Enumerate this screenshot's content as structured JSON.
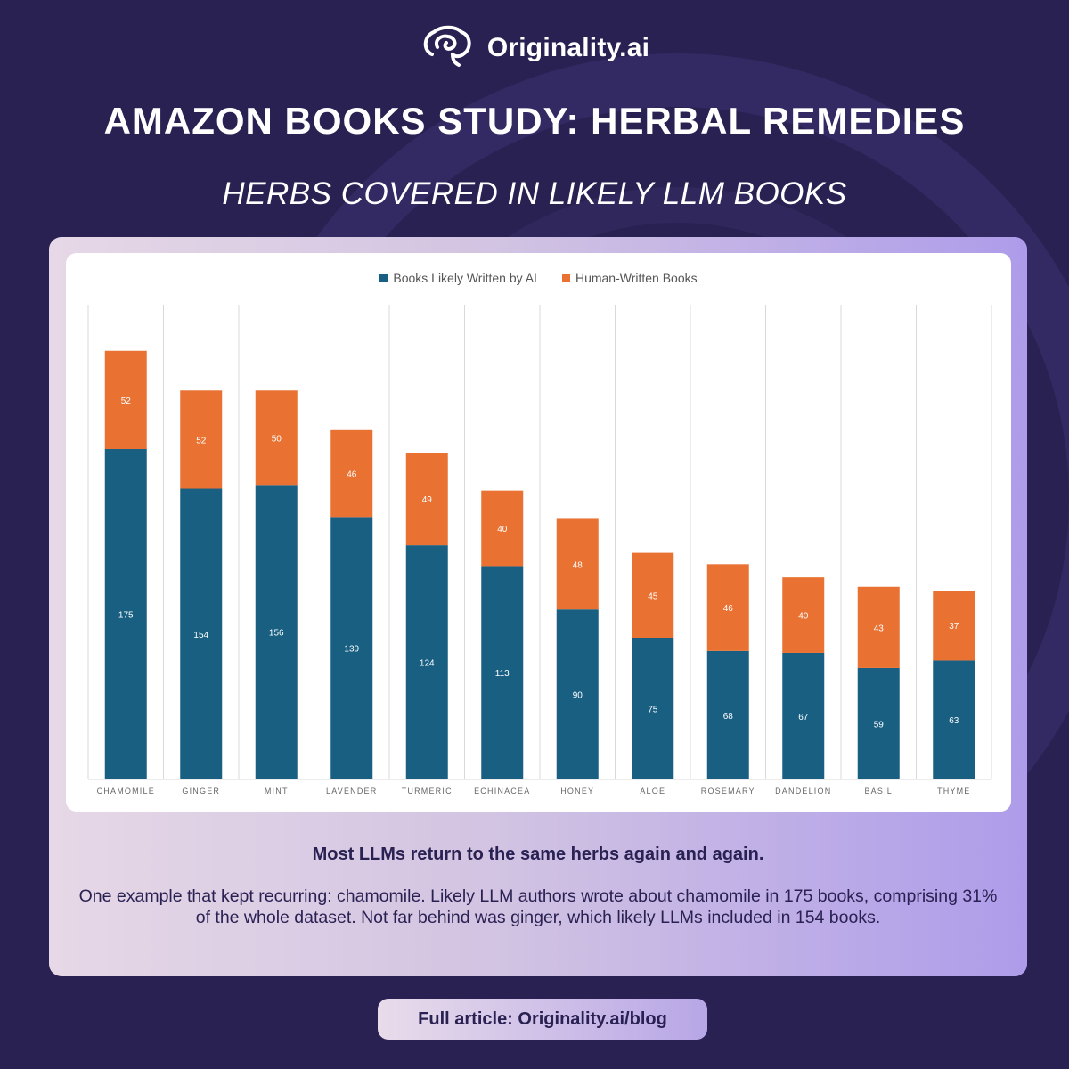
{
  "brand": {
    "name": "Originality.ai",
    "logo_icon": "brain-icon"
  },
  "header": {
    "title": "AMAZON BOOKS STUDY: HERBAL REMEDIES",
    "subtitle": "HERBS COVERED IN LIKELY LLM BOOKS"
  },
  "chart_data": {
    "type": "bar",
    "stacked": true,
    "categories": [
      "CHAMOMILE",
      "GINGER",
      "MINT",
      "LAVENDER",
      "TURMERIC",
      "ECHINACEA",
      "HONEY",
      "ALOE",
      "ROSEMARY",
      "DANDELION",
      "BASIL",
      "THYME"
    ],
    "series": [
      {
        "name": "Books Likely Written by AI",
        "color": "#185f82",
        "values": [
          175,
          154,
          156,
          139,
          124,
          113,
          90,
          75,
          68,
          67,
          59,
          63
        ]
      },
      {
        "name": "Human-Written Books",
        "color": "#e97132",
        "values": [
          52,
          52,
          50,
          46,
          49,
          40,
          48,
          45,
          46,
          40,
          43,
          37
        ]
      }
    ],
    "ylim": [
      0,
      240
    ],
    "grid": "vertical separators",
    "legend_position": "top",
    "title": "",
    "xlabel": "",
    "ylabel": ""
  },
  "caption": {
    "headline": "Most LLMs return to the same herbs again and again.",
    "body": "One example that kept recurring: chamomile. Likely LLM authors wrote about chamomile in 175 books, comprising 31% of the whole dataset. Not far behind was ginger, which likely LLMs included in 154 books."
  },
  "cta": {
    "label": "Full article: Originality.ai/blog"
  }
}
